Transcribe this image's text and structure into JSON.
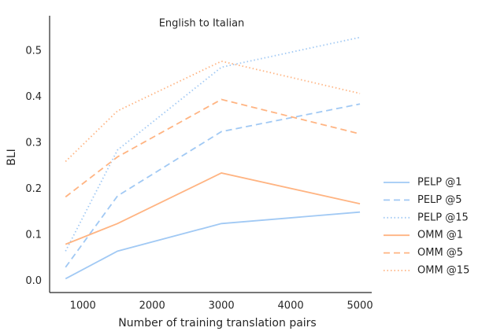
{
  "chart_data": {
    "type": "line",
    "title": "English to Italian",
    "x_label": "Number of training translation pairs",
    "y_label": "BLI",
    "x": [
      750,
      1500,
      3000,
      5000
    ],
    "xlim": [
      520,
      5170
    ],
    "xticks": [
      1000,
      2000,
      3000,
      4000,
      5000
    ],
    "ylim": [
      -0.025,
      0.577
    ],
    "yticks": [
      {
        "value": 0,
        "label": "0.0"
      },
      0.1,
      0.2,
      0.3,
      0.4,
      0.5
    ],
    "grid": false,
    "legend": "right",
    "series": [
      {
        "name": "PELP @1",
        "color": "#a1c9f4",
        "linestyle": "solid",
        "values": [
          0.005,
          0.065,
          0.125,
          0.15
        ]
      },
      {
        "name": "PELP @5",
        "color": "#a1c9f4",
        "linestyle": "dashed",
        "values": [
          0.03,
          0.185,
          0.325,
          0.385
        ]
      },
      {
        "name": "PELP @15",
        "color": "#a1c9f4",
        "linestyle": "dotted",
        "values": [
          0.065,
          0.285,
          0.465,
          0.53
        ]
      },
      {
        "name": "OMM @1",
        "color": "#ffb482",
        "linestyle": "solid",
        "values": [
          0.08,
          0.125,
          0.235,
          0.168
        ]
      },
      {
        "name": "OMM @5",
        "color": "#ffb482",
        "linestyle": "dashed",
        "values": [
          0.183,
          0.27,
          0.395,
          0.32
        ]
      },
      {
        "name": "OMM @15",
        "color": "#ffb482",
        "linestyle": "dotted",
        "values": [
          0.26,
          0.37,
          0.478,
          0.408
        ]
      }
    ]
  }
}
